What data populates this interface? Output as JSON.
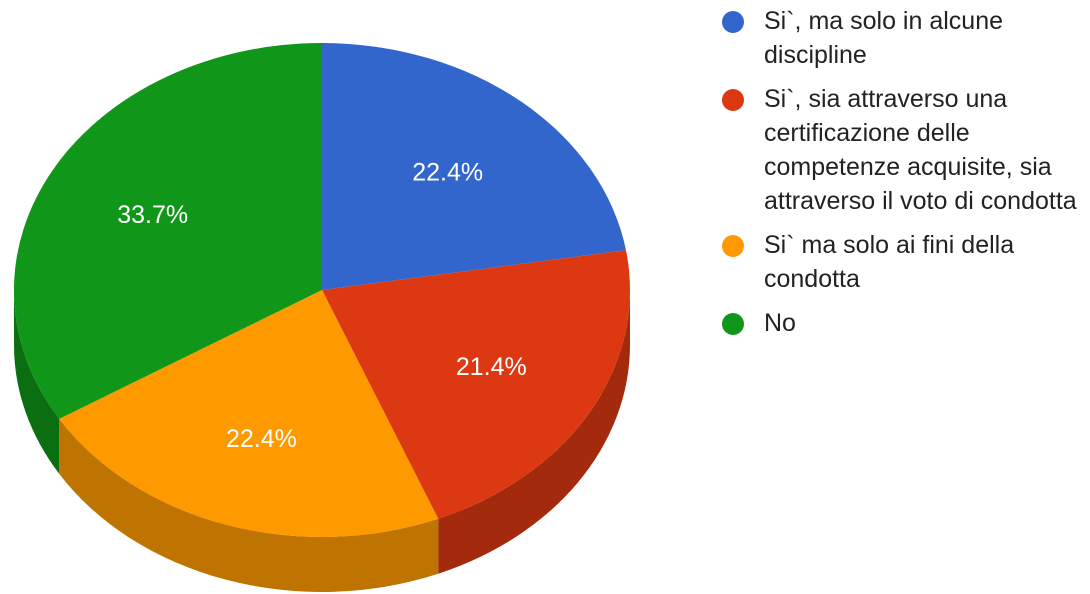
{
  "chart_data": {
    "type": "pie",
    "title": "",
    "three_d": true,
    "legend_position": "right",
    "start": "top",
    "direction": "clockwise",
    "slices": [
      {
        "label": "Si`, ma solo in alcune discipline",
        "value": 22.4,
        "display": "22.4%",
        "color": "#3366cc",
        "side_color": "#254a96"
      },
      {
        "label": "Si`, sia attraverso una certificazione delle competenze acquisite, sia attraverso il voto di condotta",
        "value": 21.4,
        "display": "21.4%",
        "color": "#dc3912",
        "side_color": "#a32a0d"
      },
      {
        "label": "Si` ma solo ai fini della condotta",
        "value": 22.4,
        "display": "22.4%",
        "color": "#ff9900",
        "side_color": "#bf7300"
      },
      {
        "label": "No",
        "value": 33.7,
        "display": "33.7%",
        "color": "#109618",
        "side_color": "#0b6e11"
      }
    ]
  }
}
